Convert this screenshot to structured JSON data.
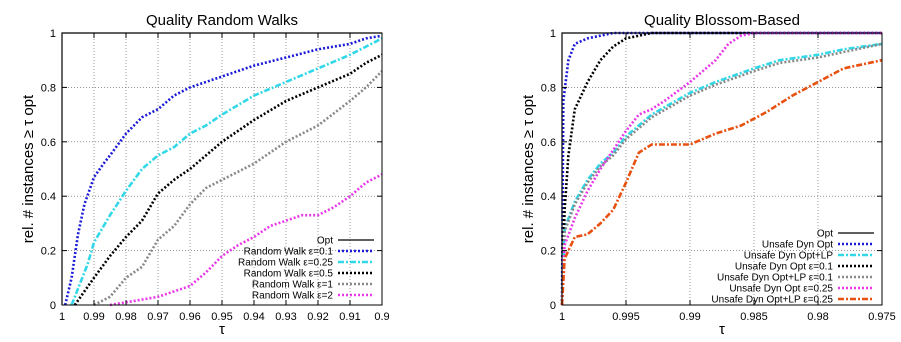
{
  "chart_data": [
    {
      "type": "line",
      "title": "Quality Random Walks",
      "xlabel": "τ",
      "ylabel": "rel. # instances ≥ τ opt",
      "xlim": [
        1,
        0.9
      ],
      "ylim": [
        0,
        1
      ],
      "x_ticks": [
        "1",
        "0.99",
        "0.98",
        "0.97",
        "0.96",
        "0.95",
        "0.94",
        "0.93",
        "0.92",
        "0.91",
        "0.9"
      ],
      "y_ticks": [
        "0",
        "0.2",
        "0.4",
        "0.6",
        "0.8",
        "1"
      ],
      "grid": true,
      "legend_position": "bottom-right",
      "series": [
        {
          "name": "Opt",
          "color": "#000000",
          "style": "solid",
          "x": [
            1,
            1,
            0.9
          ],
          "y": [
            0,
            1,
            1
          ]
        },
        {
          "name": "Random Walk ε=0.1",
          "color": "#1a1ad8",
          "style": "dotted",
          "x": [
            0.999,
            0.997,
            0.995,
            0.993,
            0.99,
            0.987,
            0.985,
            0.98,
            0.975,
            0.97,
            0.965,
            0.96,
            0.95,
            0.94,
            0.93,
            0.92,
            0.91,
            0.905,
            0.9
          ],
          "y": [
            0,
            0.1,
            0.26,
            0.37,
            0.47,
            0.52,
            0.55,
            0.63,
            0.69,
            0.72,
            0.77,
            0.8,
            0.84,
            0.88,
            0.91,
            0.94,
            0.96,
            0.98,
            0.99
          ]
        },
        {
          "name": "Random Walk ε=0.25",
          "color": "#33d8e8",
          "style": "dashdot",
          "x": [
            0.997,
            0.995,
            0.992,
            0.99,
            0.985,
            0.98,
            0.975,
            0.97,
            0.965,
            0.96,
            0.955,
            0.95,
            0.94,
            0.93,
            0.92,
            0.91,
            0.905,
            0.9
          ],
          "y": [
            0,
            0.06,
            0.15,
            0.23,
            0.33,
            0.42,
            0.5,
            0.55,
            0.58,
            0.63,
            0.66,
            0.7,
            0.77,
            0.82,
            0.87,
            0.92,
            0.95,
            0.98
          ]
        },
        {
          "name": "Random Walk ε=0.5",
          "color": "#000000",
          "style": "dotted",
          "x": [
            0.996,
            0.993,
            0.99,
            0.985,
            0.98,
            0.975,
            0.97,
            0.965,
            0.96,
            0.955,
            0.95,
            0.945,
            0.94,
            0.93,
            0.92,
            0.91,
            0.905,
            0.9
          ],
          "y": [
            0,
            0.05,
            0.1,
            0.18,
            0.25,
            0.31,
            0.41,
            0.46,
            0.5,
            0.55,
            0.6,
            0.64,
            0.68,
            0.75,
            0.8,
            0.85,
            0.89,
            0.92
          ]
        },
        {
          "name": "Random Walk ε=1",
          "color": "#888888",
          "style": "dotted",
          "x": [
            0.99,
            0.985,
            0.98,
            0.975,
            0.97,
            0.965,
            0.96,
            0.955,
            0.95,
            0.94,
            0.93,
            0.92,
            0.91,
            0.905,
            0.9
          ],
          "y": [
            0,
            0.03,
            0.1,
            0.14,
            0.24,
            0.29,
            0.37,
            0.43,
            0.46,
            0.52,
            0.6,
            0.66,
            0.75,
            0.8,
            0.86
          ]
        },
        {
          "name": "Random Walk ε=2",
          "color": "#e838e8",
          "style": "dotted",
          "x": [
            0.985,
            0.98,
            0.975,
            0.97,
            0.965,
            0.96,
            0.955,
            0.95,
            0.945,
            0.94,
            0.935,
            0.93,
            0.925,
            0.92,
            0.915,
            0.91,
            0.905,
            0.9
          ],
          "y": [
            0,
            0.01,
            0.02,
            0.03,
            0.05,
            0.07,
            0.12,
            0.18,
            0.22,
            0.25,
            0.29,
            0.31,
            0.33,
            0.33,
            0.36,
            0.4,
            0.45,
            0.48
          ]
        }
      ]
    },
    {
      "type": "line",
      "title": "Quality Blossom-Based",
      "xlabel": "τ",
      "ylabel": "rel. # instances ≥ τ opt",
      "xlim": [
        1,
        0.975
      ],
      "ylim": [
        0,
        1
      ],
      "x_ticks": [
        "1",
        "0.995",
        "0.99",
        "0.985",
        "0.98",
        "0.975"
      ],
      "y_ticks": [
        "0",
        "0.2",
        "0.4",
        "0.6",
        "0.8",
        "1"
      ],
      "grid": true,
      "legend_position": "bottom-right",
      "series": [
        {
          "name": "Opt",
          "color": "#000000",
          "style": "solid",
          "x": [
            1,
            1,
            0.975
          ],
          "y": [
            0,
            1,
            1
          ]
        },
        {
          "name": "Unsafe Dyn Opt",
          "color": "#1a1ad8",
          "style": "dotted",
          "x": [
            1,
            0.9999,
            0.9995,
            0.999,
            0.998,
            0.997,
            0.996,
            0.975
          ],
          "y": [
            0,
            0.75,
            0.9,
            0.96,
            0.98,
            0.99,
            1,
            1
          ]
        },
        {
          "name": "Unsafe Dyn Opt+LP",
          "color": "#33d8e8",
          "style": "dashdot",
          "x": [
            1,
            0.9998,
            0.999,
            0.998,
            0.997,
            0.996,
            0.995,
            0.993,
            0.99,
            0.988,
            0.985,
            0.983,
            0.98,
            0.978,
            0.975
          ],
          "y": [
            0,
            0.28,
            0.38,
            0.46,
            0.52,
            0.56,
            0.62,
            0.7,
            0.78,
            0.82,
            0.87,
            0.9,
            0.92,
            0.94,
            0.96
          ]
        },
        {
          "name": "Unsafe Dyn Opt ε=0.1",
          "color": "#000000",
          "style": "dotted",
          "x": [
            1,
            0.9998,
            0.9995,
            0.999,
            0.998,
            0.997,
            0.996,
            0.995,
            0.994,
            0.993,
            0.975
          ],
          "y": [
            0,
            0.35,
            0.55,
            0.72,
            0.82,
            0.9,
            0.95,
            0.98,
            0.99,
            1,
            1
          ]
        },
        {
          "name": "Unsafe Dyn Opt+LP ε=0.1",
          "color": "#888888",
          "style": "dotted",
          "x": [
            1,
            0.9998,
            0.999,
            0.998,
            0.997,
            0.996,
            0.995,
            0.993,
            0.99,
            0.988,
            0.985,
            0.983,
            0.98,
            0.978,
            0.975
          ],
          "y": [
            0,
            0.27,
            0.37,
            0.45,
            0.51,
            0.55,
            0.61,
            0.69,
            0.77,
            0.81,
            0.86,
            0.89,
            0.91,
            0.93,
            0.96
          ]
        },
        {
          "name": "Unsafe Dyn Opt ε=0.25",
          "color": "#e838e8",
          "style": "dotted",
          "x": [
            1,
            0.9998,
            0.999,
            0.998,
            0.997,
            0.996,
            0.995,
            0.994,
            0.993,
            0.992,
            0.99,
            0.988,
            0.987,
            0.986,
            0.985,
            0.975
          ],
          "y": [
            0,
            0.22,
            0.32,
            0.42,
            0.5,
            0.57,
            0.64,
            0.7,
            0.72,
            0.75,
            0.82,
            0.9,
            0.96,
            0.99,
            1,
            1
          ]
        },
        {
          "name": "Unsafe Dyn Opt+LP ε=0.25",
          "color": "#e85010",
          "style": "dashdot",
          "x": [
            1,
            0.9998,
            0.999,
            0.998,
            0.997,
            0.996,
            0.995,
            0.994,
            0.993,
            0.992,
            0.99,
            0.988,
            0.986,
            0.984,
            0.982,
            0.98,
            0.978,
            0.975
          ],
          "y": [
            0,
            0.17,
            0.25,
            0.26,
            0.3,
            0.35,
            0.45,
            0.56,
            0.59,
            0.59,
            0.59,
            0.63,
            0.66,
            0.71,
            0.77,
            0.82,
            0.87,
            0.9
          ]
        }
      ]
    }
  ]
}
